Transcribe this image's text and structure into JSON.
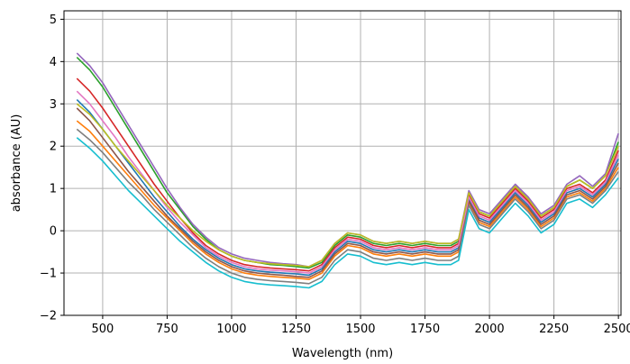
{
  "chart_data": {
    "type": "line",
    "title": "",
    "xlabel": "Wavelength (nm)",
    "ylabel": "absorbance (AU)",
    "xlim": [
      350,
      2510
    ],
    "ylim": [
      -2,
      5.2
    ],
    "xticks": [
      500,
      750,
      1000,
      1250,
      1500,
      1750,
      2000,
      2250,
      2500
    ],
    "yticks": [
      -2,
      -1,
      0,
      1,
      2,
      3,
      4,
      5
    ],
    "grid": true,
    "legend": "none",
    "x": [
      400,
      450,
      500,
      550,
      600,
      650,
      700,
      750,
      800,
      850,
      900,
      950,
      1000,
      1050,
      1100,
      1150,
      1200,
      1250,
      1300,
      1350,
      1400,
      1450,
      1500,
      1550,
      1600,
      1650,
      1700,
      1750,
      1800,
      1850,
      1880,
      1920,
      1960,
      2000,
      2050,
      2100,
      2150,
      2200,
      2250,
      2300,
      2350,
      2400,
      2450,
      2500
    ],
    "series": [
      {
        "color": "#1f77b4",
        "values": [
          3.1,
          2.8,
          2.4,
          2.0,
          1.6,
          1.2,
          0.8,
          0.45,
          0.1,
          -0.2,
          -0.45,
          -0.65,
          -0.8,
          -0.9,
          -0.95,
          -0.98,
          -1.0,
          -1.02,
          -1.05,
          -0.9,
          -0.5,
          -0.25,
          -0.3,
          -0.45,
          -0.5,
          -0.45,
          -0.5,
          -0.45,
          -0.5,
          -0.5,
          -0.4,
          0.75,
          0.3,
          0.2,
          0.55,
          0.9,
          0.6,
          0.2,
          0.4,
          0.9,
          1.0,
          0.8,
          1.1,
          1.7
        ]
      },
      {
        "color": "#ff7f0e",
        "values": [
          2.6,
          2.35,
          2.0,
          1.65,
          1.3,
          0.95,
          0.6,
          0.3,
          0.0,
          -0.3,
          -0.55,
          -0.75,
          -0.9,
          -1.0,
          -1.05,
          -1.08,
          -1.1,
          -1.12,
          -1.15,
          -1.0,
          -0.6,
          -0.35,
          -0.4,
          -0.55,
          -0.6,
          -0.55,
          -0.6,
          -0.55,
          -0.6,
          -0.6,
          -0.5,
          0.65,
          0.2,
          0.1,
          0.45,
          0.8,
          0.5,
          0.1,
          0.3,
          0.8,
          0.9,
          0.7,
          1.0,
          1.5
        ]
      },
      {
        "color": "#2ca02c",
        "values": [
          4.1,
          3.8,
          3.4,
          2.9,
          2.4,
          1.9,
          1.4,
          0.9,
          0.5,
          0.1,
          -0.2,
          -0.45,
          -0.6,
          -0.7,
          -0.75,
          -0.8,
          -0.82,
          -0.85,
          -0.88,
          -0.75,
          -0.35,
          -0.1,
          -0.15,
          -0.3,
          -0.35,
          -0.3,
          -0.35,
          -0.3,
          -0.35,
          -0.35,
          -0.25,
          0.9,
          0.45,
          0.35,
          0.7,
          1.05,
          0.75,
          0.35,
          0.55,
          1.05,
          1.2,
          1.0,
          1.3,
          2.1
        ]
      },
      {
        "color": "#d62728",
        "values": [
          3.6,
          3.3,
          2.9,
          2.45,
          2.0,
          1.55,
          1.1,
          0.7,
          0.3,
          -0.05,
          -0.35,
          -0.55,
          -0.7,
          -0.8,
          -0.85,
          -0.88,
          -0.9,
          -0.92,
          -0.95,
          -0.8,
          -0.4,
          -0.15,
          -0.2,
          -0.35,
          -0.4,
          -0.35,
          -0.4,
          -0.35,
          -0.4,
          -0.4,
          -0.3,
          0.85,
          0.4,
          0.3,
          0.65,
          1.0,
          0.7,
          0.3,
          0.5,
          1.0,
          1.1,
          0.9,
          1.2,
          1.9
        ]
      },
      {
        "color": "#9467bd",
        "values": [
          4.2,
          3.9,
          3.5,
          3.0,
          2.5,
          2.0,
          1.5,
          1.0,
          0.55,
          0.15,
          -0.15,
          -0.4,
          -0.55,
          -0.65,
          -0.7,
          -0.75,
          -0.78,
          -0.8,
          -0.85,
          -0.7,
          -0.3,
          -0.05,
          -0.1,
          -0.25,
          -0.3,
          -0.25,
          -0.3,
          -0.25,
          -0.3,
          -0.3,
          -0.2,
          0.95,
          0.5,
          0.4,
          0.75,
          1.1,
          0.8,
          0.4,
          0.6,
          1.1,
          1.3,
          1.05,
          1.35,
          2.3
        ]
      },
      {
        "color": "#8c564b",
        "values": [
          2.9,
          2.6,
          2.2,
          1.8,
          1.4,
          1.05,
          0.7,
          0.35,
          0.05,
          -0.25,
          -0.5,
          -0.7,
          -0.85,
          -0.95,
          -1.0,
          -1.03,
          -1.05,
          -1.08,
          -1.1,
          -0.95,
          -0.55,
          -0.3,
          -0.35,
          -0.5,
          -0.55,
          -0.5,
          -0.55,
          -0.5,
          -0.55,
          -0.55,
          -0.45,
          0.7,
          0.25,
          0.15,
          0.5,
          0.85,
          0.55,
          0.15,
          0.35,
          0.85,
          0.95,
          0.75,
          1.05,
          1.6
        ]
      },
      {
        "color": "#e377c2",
        "values": [
          3.3,
          3.0,
          2.6,
          2.2,
          1.75,
          1.35,
          0.95,
          0.55,
          0.2,
          -0.1,
          -0.4,
          -0.6,
          -0.75,
          -0.85,
          -0.9,
          -0.93,
          -0.95,
          -0.97,
          -1.0,
          -0.85,
          -0.45,
          -0.2,
          -0.25,
          -0.4,
          -0.45,
          -0.4,
          -0.45,
          -0.4,
          -0.45,
          -0.45,
          -0.35,
          0.8,
          0.35,
          0.25,
          0.6,
          0.95,
          0.65,
          0.25,
          0.45,
          0.95,
          1.05,
          0.85,
          1.15,
          1.8
        ]
      },
      {
        "color": "#7f7f7f",
        "values": [
          2.4,
          2.15,
          1.85,
          1.5,
          1.15,
          0.85,
          0.5,
          0.2,
          -0.1,
          -0.4,
          -0.65,
          -0.85,
          -1.0,
          -1.1,
          -1.15,
          -1.18,
          -1.2,
          -1.22,
          -1.25,
          -1.1,
          -0.7,
          -0.45,
          -0.5,
          -0.65,
          -0.7,
          -0.65,
          -0.7,
          -0.65,
          -0.7,
          -0.7,
          -0.6,
          0.6,
          0.15,
          0.05,
          0.4,
          0.75,
          0.45,
          0.05,
          0.25,
          0.75,
          0.85,
          0.65,
          0.95,
          1.4
        ]
      },
      {
        "color": "#bcbd22",
        "values": [
          3.0,
          2.75,
          2.4,
          2.0,
          1.65,
          1.3,
          0.95,
          0.6,
          0.3,
          0.0,
          -0.25,
          -0.45,
          -0.6,
          -0.7,
          -0.75,
          -0.78,
          -0.8,
          -0.82,
          -0.85,
          -0.7,
          -0.3,
          -0.05,
          -0.1,
          -0.25,
          -0.3,
          -0.25,
          -0.3,
          -0.25,
          -0.3,
          -0.3,
          -0.2,
          0.9,
          0.45,
          0.35,
          0.7,
          1.05,
          0.75,
          0.35,
          0.55,
          1.05,
          1.2,
          1.0,
          1.3,
          2.0
        ]
      },
      {
        "color": "#17becf",
        "values": [
          2.2,
          1.95,
          1.65,
          1.3,
          0.95,
          0.65,
          0.35,
          0.05,
          -0.25,
          -0.5,
          -0.75,
          -0.95,
          -1.1,
          -1.2,
          -1.25,
          -1.28,
          -1.3,
          -1.32,
          -1.35,
          -1.2,
          -0.8,
          -0.55,
          -0.6,
          -0.75,
          -0.8,
          -0.75,
          -0.8,
          -0.75,
          -0.8,
          -0.8,
          -0.7,
          0.5,
          0.05,
          -0.05,
          0.3,
          0.65,
          0.35,
          -0.05,
          0.15,
          0.65,
          0.75,
          0.55,
          0.85,
          1.25
        ]
      }
    ]
  }
}
